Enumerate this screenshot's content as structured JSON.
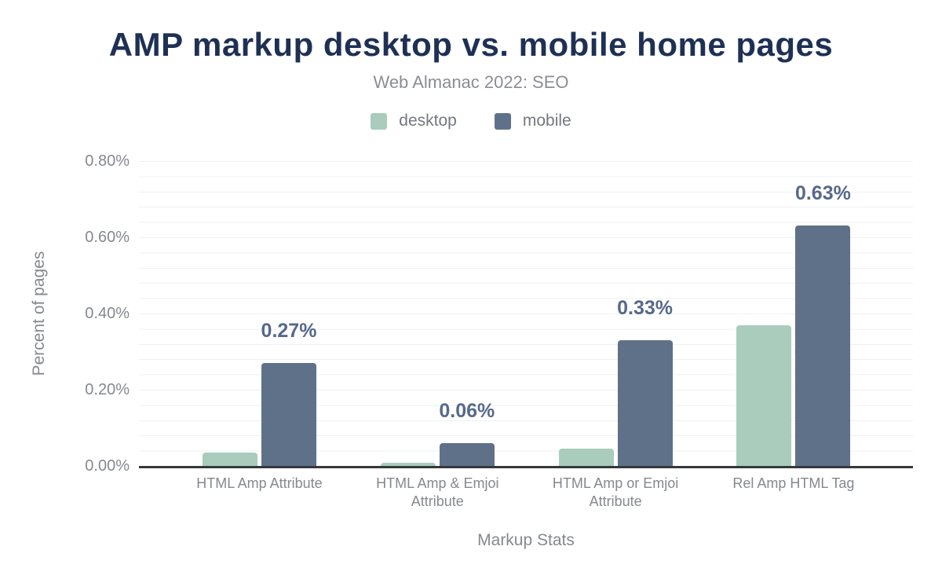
{
  "chart": {
    "title": "AMP markup desktop vs. mobile home pages",
    "subtitle": "Web Almanac 2022: SEO"
  },
  "colors": {
    "title": "#1e3054",
    "subtitle": "#8a8e94",
    "axis_text": "#85898e",
    "legend_text": "#74787e",
    "gridline": "#eef0f2",
    "baseline": "#36383b",
    "desktop_bar": "#a9ccbc",
    "mobile_bar": "#5f7089",
    "value_label": "#56688c",
    "background": "#ffffff"
  },
  "chart_data": {
    "type": "bar",
    "title": "AMP markup desktop vs. mobile home pages",
    "subtitle": "Web Almanac 2022: SEO",
    "xlabel": "Markup Stats",
    "ylabel": "Percent of pages",
    "ylim": [
      0,
      0.8
    ],
    "grid": "horizontal, minor every 0.04%",
    "legend_position": "top-center",
    "categories": [
      "HTML Amp Attribute",
      "HTML Amp & Emjoi\nAttribute",
      "HTML Amp or Emjoi\nAttribute",
      "Rel Amp HTML Tag"
    ],
    "series": [
      {
        "name": "desktop",
        "color": "#a9ccbc",
        "values": [
          0.035,
          0.008,
          0.045,
          0.37
        ],
        "values_note": "estimated from bar heights, not labeled"
      },
      {
        "name": "mobile",
        "color": "#5f7089",
        "values": [
          0.27,
          0.06,
          0.33,
          0.63
        ]
      }
    ],
    "bar_labels": [
      "0.27%",
      "0.06%",
      "0.33%",
      "0.63%"
    ],
    "yticks": [
      {
        "value": 0.0,
        "label": "0.00%"
      },
      {
        "value": 0.2,
        "label": "0.20%"
      },
      {
        "value": 0.4,
        "label": "0.40%"
      },
      {
        "value": 0.6,
        "label": "0.60%"
      },
      {
        "value": 0.8,
        "label": "0.80%"
      }
    ]
  }
}
